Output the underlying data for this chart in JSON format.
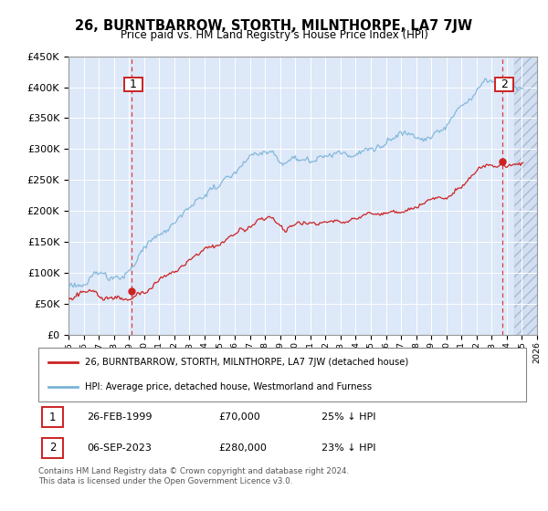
{
  "title": "26, BURNTBARROW, STORTH, MILNTHORPE, LA7 7JW",
  "subtitle": "Price paid vs. HM Land Registry's House Price Index (HPI)",
  "ylabel_ticks": [
    "£0",
    "£50K",
    "£100K",
    "£150K",
    "£200K",
    "£250K",
    "£300K",
    "£350K",
    "£400K",
    "£450K"
  ],
  "ylabel_values": [
    0,
    50000,
    100000,
    150000,
    200000,
    250000,
    300000,
    350000,
    400000,
    450000
  ],
  "xmin": 1995.0,
  "xmax": 2026.0,
  "ymin": 0,
  "ymax": 450000,
  "hpi_color": "#7ab4d8",
  "price_color": "#cc2222",
  "marker1_date": 1999.15,
  "marker1_price": 70000,
  "marker2_date": 2023.68,
  "marker2_price": 280000,
  "legend_house_label": "26, BURNTBARROW, STORTH, MILNTHORPE, LA7 7JW (detached house)",
  "legend_hpi_label": "HPI: Average price, detached house, Westmorland and Furness",
  "note1_date": "26-FEB-1999",
  "note1_price": "£70,000",
  "note1_hpi": "25% ↓ HPI",
  "note2_date": "06-SEP-2023",
  "note2_price": "£280,000",
  "note2_hpi": "23% ↓ HPI",
  "footer": "Contains HM Land Registry data © Crown copyright and database right 2024.\nThis data is licensed under the Open Government Licence v3.0.",
  "bg_color": "#dde8f8",
  "hatch_start": 2024.5
}
